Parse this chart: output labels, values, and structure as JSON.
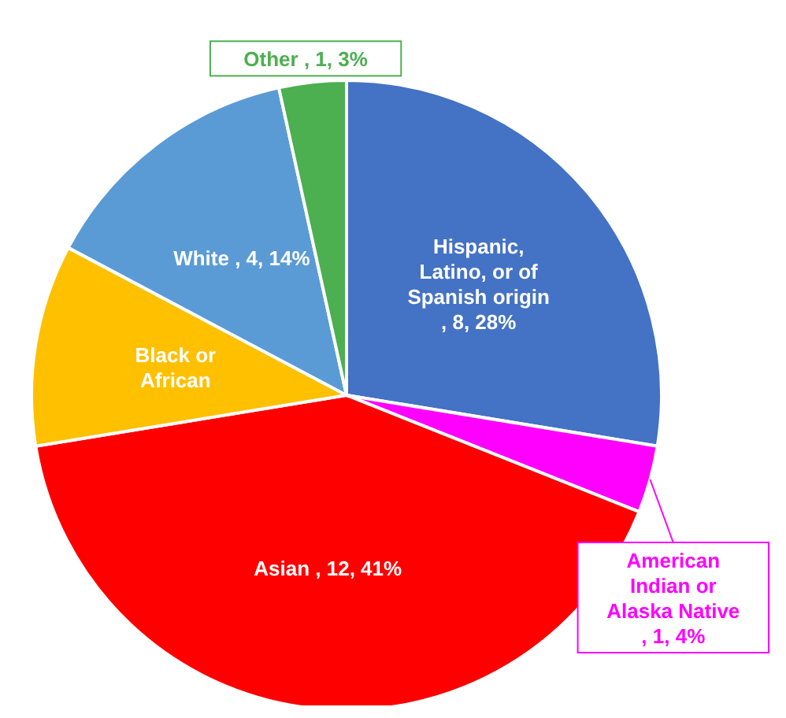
{
  "chart_data": {
    "type": "pie",
    "categories": [
      "Hispanic, Latino, or of Spanish origin",
      "American Indian or Alaska Native",
      "Asian",
      "Black or African",
      "White",
      "Other"
    ],
    "values": [
      8,
      1,
      12,
      3,
      4,
      1
    ],
    "value_labels": [
      ", 8, 28%",
      ", 1, 4%",
      ", 12, 41%",
      null,
      ", 4, 14%",
      ", 1, 3%"
    ],
    "colors": [
      "#4472c4",
      "#ff00ff",
      "#ff0000",
      "#ffc000",
      "#5b9bd5",
      "#4caf50"
    ]
  }
}
